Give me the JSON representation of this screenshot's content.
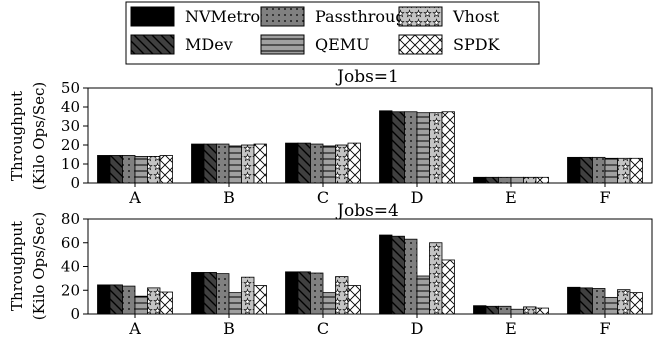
{
  "chart_data": [
    {
      "type": "bar",
      "title": "Jobs=1",
      "ylabel_line1": "Throughput",
      "ylabel_line2": "(Kilo Ops/Sec)",
      "ylim": [
        0,
        50
      ],
      "yticks": [
        0,
        10,
        20,
        30,
        40,
        50
      ],
      "categories": [
        "A",
        "B",
        "C",
        "D",
        "E",
        "F"
      ],
      "series": [
        {
          "name": "NVMetro",
          "values": [
            14.5,
            20.5,
            21.0,
            38.0,
            3.0,
            13.5
          ]
        },
        {
          "name": "MDev",
          "values": [
            14.5,
            20.5,
            21.0,
            37.5,
            3.0,
            13.5
          ]
        },
        {
          "name": "Passthrough",
          "values": [
            14.5,
            20.5,
            20.5,
            37.5,
            3.0,
            13.5
          ]
        },
        {
          "name": "QEMU",
          "values": [
            14.0,
            19.5,
            19.5,
            37.0,
            3.0,
            13.0
          ]
        },
        {
          "name": "Vhost",
          "values": [
            14.0,
            20.0,
            20.0,
            37.0,
            3.0,
            13.0
          ]
        },
        {
          "name": "SPDK",
          "values": [
            14.5,
            20.5,
            21.0,
            37.5,
            3.0,
            13.0
          ]
        }
      ]
    },
    {
      "type": "bar",
      "title": "Jobs=4",
      "ylabel_line1": "Throughput",
      "ylabel_line2": "(Kilo Ops/Sec)",
      "ylim": [
        0,
        80
      ],
      "yticks": [
        0,
        20,
        40,
        60,
        80
      ],
      "categories": [
        "A",
        "B",
        "C",
        "D",
        "E",
        "F"
      ],
      "series": [
        {
          "name": "NVMetro",
          "values": [
            24.5,
            35.0,
            35.5,
            66.5,
            7.0,
            22.5
          ]
        },
        {
          "name": "MDev",
          "values": [
            24.5,
            35.0,
            35.5,
            65.5,
            6.5,
            22.0
          ]
        },
        {
          "name": "Passthrough",
          "values": [
            23.5,
            34.0,
            34.5,
            63.0,
            6.5,
            21.5
          ]
        },
        {
          "name": "QEMU",
          "values": [
            15.0,
            18.0,
            18.0,
            32.0,
            4.0,
            14.0
          ]
        },
        {
          "name": "Vhost",
          "values": [
            22.0,
            31.0,
            31.5,
            60.0,
            6.0,
            20.5
          ]
        },
        {
          "name": "SPDK",
          "values": [
            18.5,
            24.0,
            24.0,
            45.5,
            5.0,
            18.0
          ]
        }
      ]
    }
  ],
  "legend": [
    {
      "name": "NVMetro",
      "pattern": "solid"
    },
    {
      "name": "MDev",
      "pattern": "diag"
    },
    {
      "name": "Passthrough",
      "pattern": "dots"
    },
    {
      "name": "QEMU",
      "pattern": "hlines"
    },
    {
      "name": "Vhost",
      "pattern": "stars"
    },
    {
      "name": "SPDK",
      "pattern": "cross"
    }
  ],
  "colors": {
    "NVMetro": "#000000",
    "MDev": "#404040",
    "Passthrough": "#808080",
    "QEMU": "#a0a0a0",
    "Vhost": "#c4c4c4",
    "SPDK": "#ffffff"
  }
}
